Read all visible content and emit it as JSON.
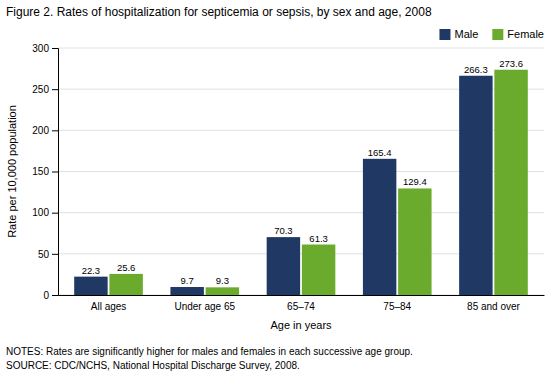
{
  "chart_data": {
    "type": "bar",
    "title": "Figure 2. Rates of hospitalization for septicemia or sepsis, by sex and age, 2008",
    "categories": [
      "All ages",
      "Under age 65",
      "65–74",
      "75–84",
      "85 and over"
    ],
    "xlabel": "Age in years",
    "ylabel": "Rate per 10,000 population",
    "series": [
      {
        "name": "Male",
        "color": "#1F3864",
        "values": [
          22.3,
          9.7,
          70.3,
          165.4,
          266.3
        ]
      },
      {
        "name": "Female",
        "color": "#6AAB2E",
        "values": [
          25.6,
          9.3,
          61.3,
          129.4,
          273.6
        ]
      }
    ],
    "ylim": [
      0,
      300
    ],
    "yticks": [
      0,
      50,
      100,
      150,
      200,
      250,
      300
    ],
    "grid": true,
    "legend": "upper right",
    "data_labels": true,
    "annotations": [
      "NOTES: Rates are significantly higher for males and females in each successive age group.",
      "SOURCE: CDC/NCHS, National Hospital Discharge Survey, 2008."
    ]
  }
}
